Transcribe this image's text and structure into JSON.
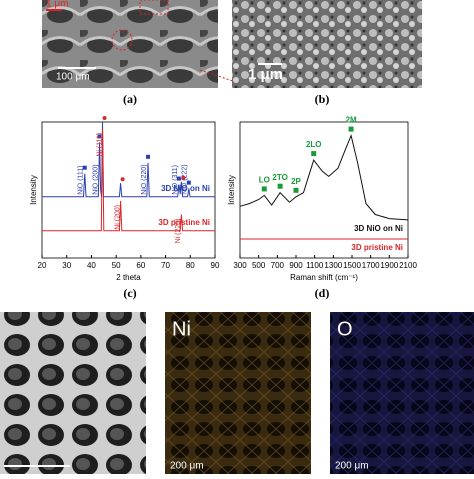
{
  "panels": [
    {
      "label": "(a)",
      "scale_top": "1 μm",
      "scale_bottom": "100 μm"
    },
    {
      "label": "(b)",
      "scale": "1 μm"
    }
  ],
  "maps": [
    {
      "element": "Ni",
      "scale": "200 μm"
    },
    {
      "element": "O",
      "scale": "200 μm"
    }
  ],
  "chart_data": [
    {
      "type": "line",
      "label": "(c)",
      "xlabel": "2 theta",
      "ylabel": "Intensity",
      "xlim": [
        20,
        90
      ],
      "xticks": [
        20,
        30,
        40,
        50,
        60,
        70,
        80,
        90
      ],
      "ylim": [
        0,
        100
      ],
      "series": [
        {
          "name": "3D NiO on Ni",
          "color": "#2a3fb0",
          "x": [
            20,
            36.8,
            37.3,
            37.8,
            42.8,
            43.3,
            43.7,
            44.1,
            44.5,
            44.9,
            51.3,
            51.8,
            52.3,
            62.4,
            62.9,
            63.4,
            74.9,
            75.4,
            75.9,
            76.4,
            76.9,
            78.9,
            79.4,
            79.9,
            90
          ],
          "values": [
            45,
            45,
            62,
            45,
            45,
            85,
            50,
            45,
            100,
            45,
            45,
            55,
            45,
            45,
            70,
            45,
            45,
            54,
            47,
            56,
            45,
            45,
            51,
            45,
            45
          ]
        },
        {
          "name": "3D pristine Ni",
          "color": "#d9262a",
          "x": [
            20,
            44.0,
            44.5,
            45.0,
            51.3,
            51.8,
            52.3,
            75.9,
            76.4,
            76.9,
            90
          ],
          "values": [
            20,
            20,
            95,
            20,
            20,
            42,
            20,
            20,
            32,
            20,
            20
          ]
        }
      ],
      "annotations": [
        {
          "text": "NiO (111)",
          "x": 37.3,
          "color": "#2a3fb0"
        },
        {
          "text": "NiO (200)",
          "x": 43.3,
          "color": "#2a3fb0"
        },
        {
          "text": "NiO (220)",
          "x": 62.9,
          "color": "#2a3fb0"
        },
        {
          "text": "NiO (311)",
          "x": 75.4,
          "color": "#2a3fb0"
        },
        {
          "text": "NiO (222)",
          "x": 79.4,
          "color": "#2a3fb0"
        },
        {
          "text": "Ni (111)",
          "x": 44.5,
          "color": "#d9262a"
        },
        {
          "text": "Ni (200)",
          "x": 51.8,
          "color": "#d9262a"
        },
        {
          "text": "Ni (220)",
          "x": 76.4,
          "color": "#d9262a"
        }
      ]
    },
    {
      "type": "line",
      "label": "(d)",
      "xlabel": "Raman shift (cm⁻¹)",
      "ylabel": "Intensity",
      "xlim": [
        300,
        2100
      ],
      "xticks": [
        300,
        500,
        700,
        900,
        1100,
        1300,
        1500,
        1700,
        1900,
        2100
      ],
      "ylim": [
        0,
        100
      ],
      "series": [
        {
          "name": "3D NiO on Ni",
          "color": "#111111",
          "x": [
            300,
            400,
            500,
            560,
            640,
            730,
            830,
            900,
            980,
            1090,
            1180,
            1250,
            1350,
            1430,
            1490,
            1560,
            1650,
            1750,
            1900,
            2100
          ],
          "values": [
            38,
            40,
            43,
            46,
            39,
            48,
            41,
            45,
            48,
            72,
            64,
            60,
            66,
            80,
            90,
            70,
            40,
            32,
            29,
            28
          ]
        },
        {
          "name": "3D pristine Ni",
          "color": "#d9262a",
          "x": [
            300,
            2100
          ],
          "values": [
            14,
            14
          ]
        }
      ],
      "annotations": [
        {
          "text": "LO",
          "x": 560,
          "color": "#1a9a3a"
        },
        {
          "text": "2TO",
          "x": 730,
          "color": "#1a9a3a"
        },
        {
          "text": "2P",
          "x": 900,
          "color": "#1a9a3a"
        },
        {
          "text": "2LO",
          "x": 1090,
          "color": "#1a9a3a"
        },
        {
          "text": "2M",
          "x": 1490,
          "color": "#1a9a3a"
        }
      ]
    }
  ]
}
